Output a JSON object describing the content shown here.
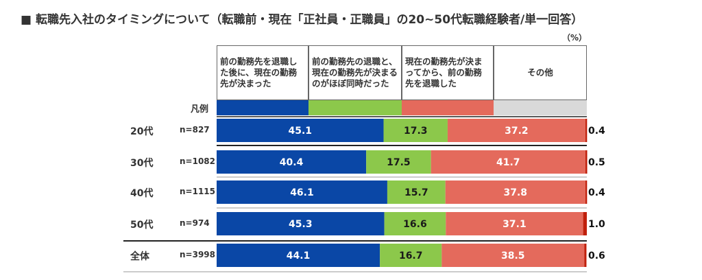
{
  "title": "■ 転職先入社のタイミングについて（転職前・現在「正社員・正職員」の20~50代転職経験者/単一回答）",
  "unit": "（%）",
  "legend_label": "凡例",
  "colors": {
    "blue": "#0a47a6",
    "green": "#8cc84b",
    "red": "#e46a5c",
    "gray": "#d9d9d9",
    "darkred": "#c0200c"
  },
  "chart_data": {
    "type": "bar",
    "stacked": true,
    "orientation": "horizontal",
    "unit": "%",
    "categories": [
      "20代",
      "30代",
      "40代",
      "50代",
      "全体"
    ],
    "sample_sizes": [
      "n=827",
      "n=1082",
      "n=1115",
      "n=974",
      "n=3998"
    ],
    "series": [
      {
        "name": "前の勤務先を退職した後に、現在の勤務先が決まった",
        "values": [
          45.1,
          40.4,
          46.1,
          45.3,
          44.1
        ]
      },
      {
        "name": "前の勤務先の退職と、現在の勤務先が決まるのがほぼ同時だった",
        "values": [
          17.3,
          17.5,
          15.7,
          16.6,
          16.7
        ]
      },
      {
        "name": "現在の勤務先が決まってから、前の勤務先を退職した",
        "values": [
          37.2,
          41.7,
          37.8,
          37.1,
          38.5
        ]
      },
      {
        "name": "その他",
        "values": [
          0.4,
          0.5,
          0.4,
          1.0,
          0.6
        ]
      }
    ]
  }
}
